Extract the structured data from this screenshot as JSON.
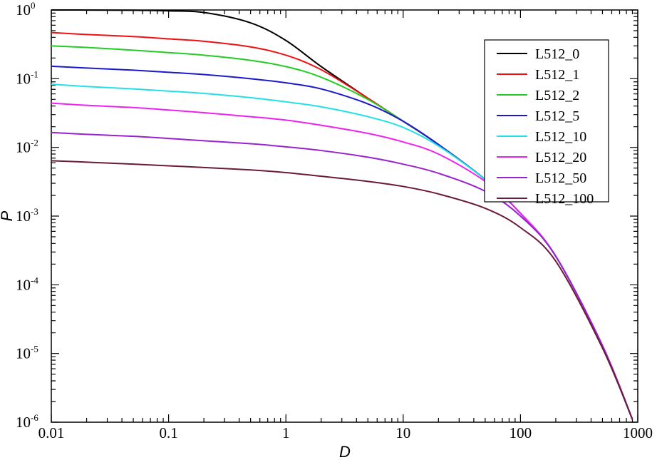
{
  "chart_data": {
    "type": "line",
    "xlabel": "D",
    "ylabel": "P",
    "xscale": "log",
    "yscale": "log",
    "xlim": [
      0.01,
      1000
    ],
    "ylim": [
      1e-06,
      1
    ],
    "x_ticks": [
      {
        "value": 0.01,
        "label": "0.01"
      },
      {
        "value": 0.1,
        "label": "0.1"
      },
      {
        "value": 1,
        "label": "1"
      },
      {
        "value": 10,
        "label": "10"
      },
      {
        "value": 100,
        "label": "100"
      },
      {
        "value": 1000,
        "label": "1000"
      }
    ],
    "y_ticks": [
      {
        "value": 1,
        "base": "10",
        "exp": "0"
      },
      {
        "value": 0.1,
        "base": "10",
        "exp": "-1"
      },
      {
        "value": 0.01,
        "base": "10",
        "exp": "-2"
      },
      {
        "value": 0.001,
        "base": "10",
        "exp": "-3"
      },
      {
        "value": 0.0001,
        "base": "10",
        "exp": "-4"
      },
      {
        "value": 1e-05,
        "base": "10",
        "exp": "-5"
      },
      {
        "value": 1e-06,
        "base": "10",
        "exp": "-6"
      }
    ],
    "grid": false,
    "legend_position": "top-right",
    "x": [
      0.01,
      0.02,
      0.05,
      0.1,
      0.2,
      0.5,
      1,
      2,
      5,
      10,
      20,
      50,
      100,
      200,
      500,
      900
    ],
    "series": [
      {
        "name": "L512_0",
        "color": "#000000",
        "values": [
          1.0,
          0.998,
          0.99,
          0.97,
          0.92,
          0.65,
          0.36,
          0.15,
          0.052,
          0.024,
          0.011,
          0.0034,
          0.0011,
          0.00026,
          1.3e-05,
          1.1e-06
        ]
      },
      {
        "name": "L512_1",
        "color": "#ee1111",
        "values": [
          0.47,
          0.44,
          0.41,
          0.38,
          0.35,
          0.29,
          0.22,
          0.135,
          0.052,
          0.024,
          0.011,
          0.0034,
          0.0011,
          0.00026,
          1.3e-05,
          1.1e-06
        ]
      },
      {
        "name": "L512_2",
        "color": "#22cc22",
        "values": [
          0.3,
          0.285,
          0.26,
          0.24,
          0.22,
          0.185,
          0.15,
          0.105,
          0.05,
          0.024,
          0.011,
          0.0034,
          0.0011,
          0.00026,
          1.3e-05,
          1.1e-06
        ]
      },
      {
        "name": "L512_5",
        "color": "#1a1acc",
        "values": [
          0.152,
          0.143,
          0.133,
          0.124,
          0.115,
          0.1,
          0.087,
          0.071,
          0.043,
          0.024,
          0.011,
          0.0034,
          0.0011,
          0.00026,
          1.3e-05,
          1.1e-06
        ]
      },
      {
        "name": "L512_10",
        "color": "#22e0e8",
        "values": [
          0.083,
          0.077,
          0.071,
          0.066,
          0.061,
          0.053,
          0.046,
          0.039,
          0.028,
          0.0195,
          0.0105,
          0.0034,
          0.0011,
          0.00026,
          1.3e-05,
          1.1e-06
        ]
      },
      {
        "name": "L512_20",
        "color": "#ee22ee",
        "values": [
          0.044,
          0.041,
          0.038,
          0.035,
          0.032,
          0.028,
          0.025,
          0.021,
          0.016,
          0.012,
          0.008,
          0.0032,
          0.0011,
          0.00026,
          1.3e-05,
          1.1e-06
        ]
      },
      {
        "name": "L512_50",
        "color": "#9922cc",
        "values": [
          0.0165,
          0.0155,
          0.0145,
          0.0135,
          0.0125,
          0.0113,
          0.0102,
          0.009,
          0.0072,
          0.0057,
          0.0042,
          0.0023,
          0.001,
          0.00026,
          1.3e-05,
          1.1e-06
        ]
      },
      {
        "name": "L512_100",
        "color": "#6a1a3a",
        "values": [
          0.0064,
          0.0061,
          0.0057,
          0.0054,
          0.0051,
          0.0047,
          0.0043,
          0.0038,
          0.0032,
          0.0027,
          0.0021,
          0.0013,
          0.00068,
          0.00022,
          1.2e-05,
          1.1e-06
        ]
      }
    ]
  }
}
